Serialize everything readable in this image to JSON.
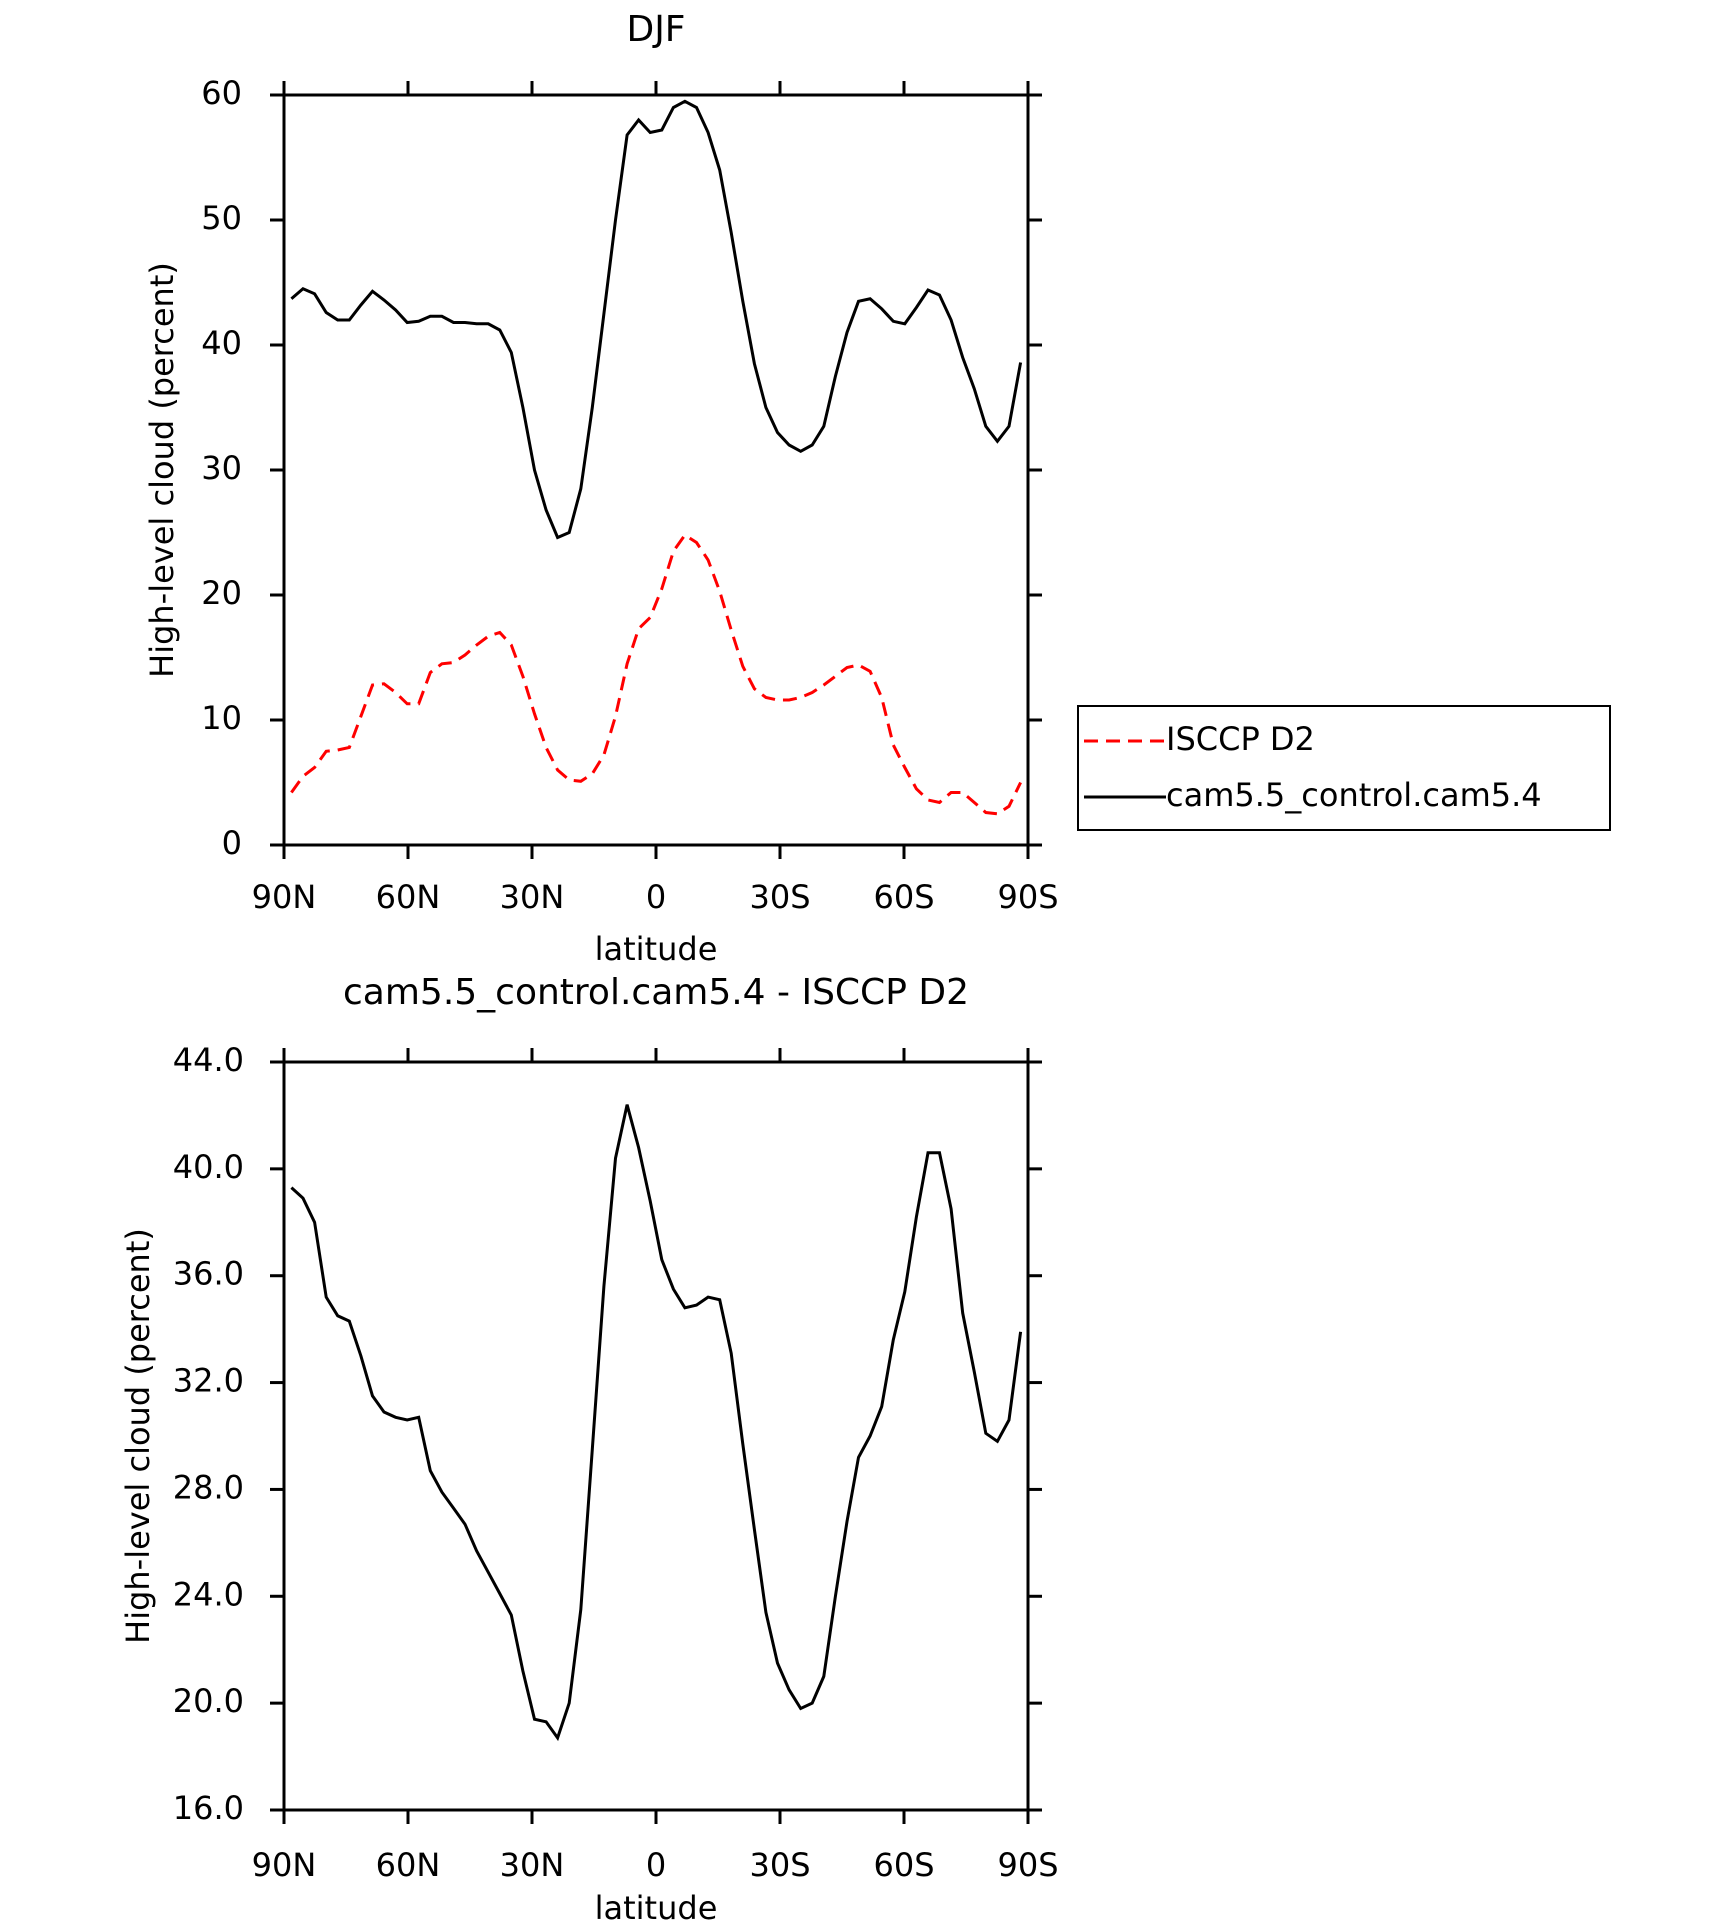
{
  "chart_data": [
    {
      "type": "line",
      "title": "DJF",
      "xlabel": "latitude",
      "ylabel": "High-level cloud (percent)",
      "x": [
        88.2,
        85.4,
        82.6,
        79.8,
        77.0,
        74.2,
        71.4,
        68.6,
        65.8,
        63.0,
        60.2,
        57.4,
        54.6,
        51.8,
        49.0,
        46.2,
        43.4,
        40.6,
        37.8,
        35.0,
        32.2,
        29.4,
        26.6,
        23.8,
        21.0,
        18.2,
        15.4,
        12.6,
        9.8,
        7.0,
        4.2,
        1.4,
        -1.4,
        -4.2,
        -7.0,
        -9.8,
        -12.6,
        -15.4,
        -18.2,
        -21.0,
        -23.8,
        -26.6,
        -29.4,
        -32.2,
        -35.0,
        -37.8,
        -40.6,
        -43.4,
        -46.2,
        -49.0,
        -51.8,
        -54.6,
        -57.4,
        -60.2,
        -63.0,
        -65.8,
        -68.6,
        -71.4,
        -74.2,
        -77.0,
        -79.8,
        -82.6,
        -85.4,
        -88.2
      ],
      "series": [
        {
          "name": "ISCCP D2",
          "color": "#ff0000",
          "dash": true,
          "values": [
            4.2,
            5.5,
            6.2,
            7.5,
            7.6,
            7.8,
            10.3,
            12.8,
            12.9,
            12.2,
            11.3,
            11.3,
            13.8,
            14.5,
            14.6,
            15.2,
            16.0,
            16.7,
            17.0,
            16.0,
            13.5,
            10.5,
            7.8,
            6.0,
            5.2,
            5.1,
            5.7,
            7.2,
            10.3,
            14.5,
            17.3,
            18.2,
            20.5,
            23.5,
            24.8,
            24.2,
            22.8,
            20.3,
            17.2,
            14.3,
            12.5,
            11.8,
            11.6,
            11.6,
            11.8,
            12.2,
            12.8,
            13.5,
            14.2,
            14.4,
            13.9,
            11.8,
            8.0,
            6.2,
            4.5,
            3.6,
            3.4,
            4.2,
            4.2,
            3.4,
            2.6,
            2.5,
            3.1,
            5.0
          ]
        },
        {
          "name": "cam5.5_control.cam5.4",
          "color": "#000000",
          "dash": false,
          "values": [
            43.7,
            44.5,
            44.1,
            42.6,
            42.0,
            42.0,
            43.2,
            44.3,
            43.6,
            42.8,
            41.8,
            41.9,
            42.3,
            42.3,
            41.8,
            41.8,
            41.7,
            41.7,
            41.2,
            39.4,
            35.0,
            30.0,
            26.8,
            24.6,
            25.0,
            28.5,
            35.0,
            42.5,
            50.0,
            56.8,
            58.0,
            57.0,
            57.2,
            59.0,
            59.5,
            59.0,
            57.0,
            54.0,
            49.0,
            43.5,
            38.5,
            35.0,
            33.0,
            32.0,
            31.5,
            32.0,
            33.5,
            37.5,
            41.0,
            43.5,
            43.7,
            42.9,
            41.9,
            41.7,
            43.0,
            44.4,
            44.0,
            42.0,
            39.0,
            36.5,
            33.5,
            32.3,
            33.5,
            38.6
          ]
        }
      ],
      "xlim": [
        90,
        -90
      ],
      "xticks": [
        {
          "value": 90,
          "label": "90N"
        },
        {
          "value": 60,
          "label": "60N"
        },
        {
          "value": 30,
          "label": "30N"
        },
        0,
        {
          "value": -30,
          "label": "30S"
        },
        {
          "value": -60,
          "label": "60S"
        },
        {
          "value": -90,
          "label": "90S"
        }
      ],
      "ylim": [
        0,
        60
      ],
      "yticks": [
        0,
        10,
        20,
        30,
        40,
        50,
        60
      ],
      "legend": "right"
    },
    {
      "type": "line",
      "title": "cam5.5_control.cam5.4 - ISCCP D2",
      "xlabel": "latitude",
      "ylabel": "High-level cloud (percent)",
      "x": [
        88.2,
        85.4,
        82.6,
        79.8,
        77.0,
        74.2,
        71.4,
        68.6,
        65.8,
        63.0,
        60.2,
        57.4,
        54.6,
        51.8,
        49.0,
        46.2,
        43.4,
        40.6,
        37.8,
        35.0,
        32.2,
        29.4,
        26.6,
        23.8,
        21.0,
        18.2,
        15.4,
        12.6,
        9.8,
        7.0,
        4.2,
        1.4,
        -1.4,
        -4.2,
        -7.0,
        -9.8,
        -12.6,
        -15.4,
        -18.2,
        -21.0,
        -23.8,
        -26.6,
        -29.4,
        -32.2,
        -35.0,
        -37.8,
        -40.6,
        -43.4,
        -46.2,
        -49.0,
        -51.8,
        -54.6,
        -57.4,
        -60.2,
        -63.0,
        -65.8,
        -68.6,
        -71.4,
        -74.2,
        -77.0,
        -79.8,
        -82.6,
        -85.4,
        -88.2
      ],
      "series": [
        {
          "color": "#000000",
          "dash": false,
          "values": [
            39.3,
            38.9,
            38.0,
            35.2,
            34.5,
            34.3,
            33.0,
            31.5,
            30.9,
            30.7,
            30.6,
            30.7,
            28.7,
            27.9,
            27.3,
            26.7,
            25.7,
            24.9,
            24.1,
            23.3,
            21.2,
            19.4,
            19.3,
            18.7,
            20.0,
            23.5,
            29.5,
            35.6,
            40.4,
            42.4,
            40.8,
            38.8,
            36.6,
            35.5,
            34.8,
            34.9,
            35.2,
            35.1,
            33.1,
            29.7,
            26.5,
            23.4,
            21.5,
            20.5,
            19.8,
            20.0,
            21.0,
            24.0,
            26.8,
            29.2,
            30.0,
            31.1,
            33.6,
            35.4,
            38.2,
            40.6,
            40.6,
            38.5,
            34.6,
            32.4,
            30.1,
            29.8,
            30.6,
            33.9
          ]
        }
      ],
      "xlim": [
        90,
        -90
      ],
      "xticks": [
        {
          "value": 90,
          "label": "90N"
        },
        {
          "value": 60,
          "label": "60N"
        },
        {
          "value": 30,
          "label": "30N"
        },
        0,
        {
          "value": -30,
          "label": "30S"
        },
        {
          "value": -60,
          "label": "60S"
        },
        {
          "value": -90,
          "label": "90S"
        }
      ],
      "ylim": [
        16,
        44
      ],
      "yticks": [
        {
          "value": 16,
          "label": "16.0"
        },
        {
          "value": 20,
          "label": "20.0"
        },
        {
          "value": 24,
          "label": "24.0"
        },
        {
          "value": 28,
          "label": "28.0"
        },
        {
          "value": 32,
          "label": "32.0"
        },
        {
          "value": 36,
          "label": "36.0"
        },
        {
          "value": 40,
          "label": "40.0"
        },
        {
          "value": 44,
          "label": "44.0"
        }
      ]
    }
  ]
}
